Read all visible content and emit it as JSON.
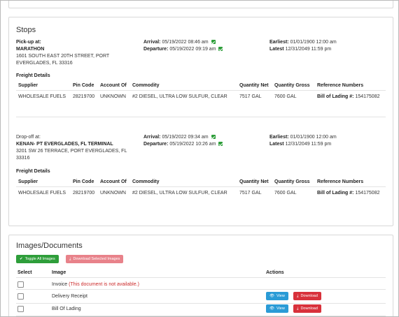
{
  "stops": {
    "title": "Stops",
    "pickup": {
      "label": "Pick-up at:",
      "name": "MARATHON",
      "address_line1": "1601 SOUTH EAST 20TH STREET, PORT",
      "address_line2": "EVERGLADES, FL 33316",
      "arrival_label": "Arrival:",
      "arrival_value": "05/19/2022 08:46 am",
      "departure_label": "Departure:",
      "departure_value": "05/19/2022 09:19 am",
      "earliest_label": "Earliest:",
      "earliest_value": "01/01/1900 12:00 am",
      "latest_label": "Latest",
      "latest_value": "12/31/2049 11:59 pm"
    },
    "dropoff": {
      "label": "Drop-off at:",
      "name": "KENAN- PT EVERGLADES, FL TERMINAL",
      "address_line1": "3201 SW 26 TERRACE, PORT EVERGLADES, FL",
      "address_line2": "33316",
      "arrival_label": "Arrival:",
      "arrival_value": "05/19/2022 09:34 am",
      "departure_label": "Departure:",
      "departure_value": "05/19/2022 10:26 am",
      "earliest_label": "Earliest:",
      "earliest_value": "01/01/1900 12:00 am",
      "latest_label": "Latest",
      "latest_value": "12/31/2049 11:59 pm"
    },
    "freight_title": "Freight Details",
    "columns": [
      "Supplier",
      "Pin Code",
      "Account Of",
      "Commodity",
      "Quantity Net",
      "Quantity Gross",
      "Reference Numbers"
    ],
    "pickup_row": {
      "supplier": "WHOLESALE FUELS",
      "pin": "28219700",
      "account": "UNKNOWN",
      "commodity": "#2 DIESEL, ULTRA LOW SULFUR, CLEAR",
      "qty_net": "7517 GAL",
      "qty_gross": "7600 GAL",
      "ref_label": "Bill of Lading #:",
      "ref_value": "154175082"
    },
    "dropoff_row": {
      "supplier": "WHOLESALE FUELS",
      "pin": "28219700",
      "account": "UNKNOWN",
      "commodity": "#2 DIESEL, ULTRA LOW SULFUR, CLEAR",
      "qty_net": "7517 GAL",
      "qty_gross": "7600 GAL",
      "ref_label": "Bill of Lading #:",
      "ref_value": "154175082"
    }
  },
  "images": {
    "title": "Images/Documents",
    "toggle_label": "Toggle All Images",
    "download_selected_label": "Download Selected Images",
    "columns": [
      "Select",
      "Image",
      "Actions"
    ],
    "rows": [
      {
        "name": "Invoice",
        "note": "(This document is not available.)"
      },
      {
        "name": "Delivery Receipt",
        "view": "View",
        "download": "Download"
      },
      {
        "name": "Bill Of Lading",
        "view": "View",
        "download": "Download"
      }
    ]
  },
  "icons": {
    "check": "check-icon",
    "toggle": "check-icon",
    "download": "download-icon",
    "view": "eye-icon"
  },
  "colors": {
    "green": "#2e9e3a",
    "pink": "#e8828a",
    "blue": "#2a9bd6",
    "red": "#d8313b",
    "unavailable_text": "#cc2b2b"
  }
}
